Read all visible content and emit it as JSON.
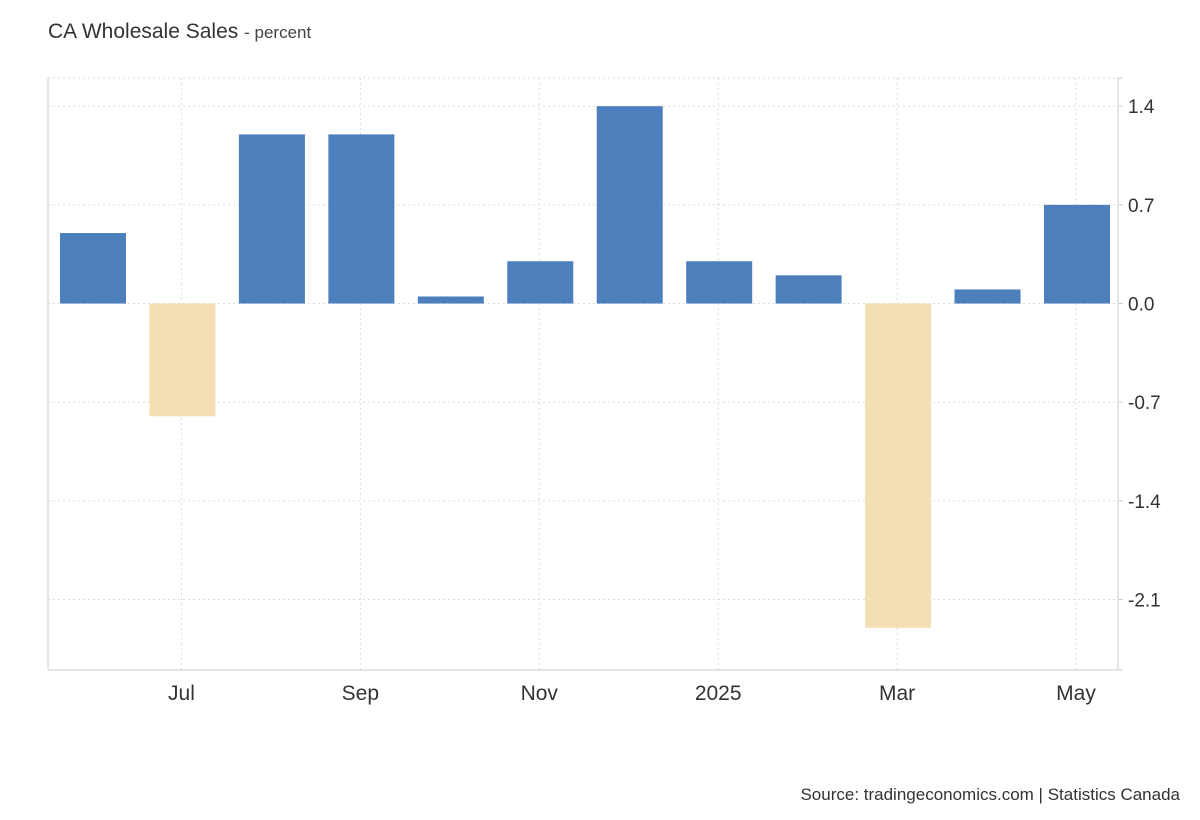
{
  "header": {
    "title": "CA Wholesale Sales",
    "subtitle": "- percent"
  },
  "source": "Source: tradingeconomics.com | Statistics Canada",
  "chart_data": {
    "type": "bar",
    "title": "CA Wholesale Sales",
    "ylabel": "percent",
    "xlabel": "",
    "categories": [
      "2024-06",
      "2024-07",
      "2024-08",
      "2024-09",
      "2024-10",
      "2024-11",
      "2024-12",
      "2025-01",
      "2025-02",
      "2025-03",
      "2025-04",
      "2025-05"
    ],
    "values": [
      0.5,
      -0.8,
      1.2,
      1.2,
      0.05,
      0.3,
      1.4,
      0.3,
      0.2,
      -2.3,
      0.1,
      0.7
    ],
    "ylim": [
      -2.6,
      1.6
    ],
    "yticks": [
      1.4,
      0.7,
      0.0,
      -0.7,
      -1.4,
      -2.1
    ],
    "ytick_labels": [
      "1.4",
      "0.7",
      "0.0",
      "-0.7",
      "-1.4",
      "-2.1"
    ],
    "xtick_labels": [
      {
        "label": "Jul",
        "at": "2024-07"
      },
      {
        "label": "Sep",
        "at": "2024-09"
      },
      {
        "label": "Nov",
        "at": "2024-11"
      },
      {
        "label": "2025",
        "at": "2025-01"
      },
      {
        "label": "Mar",
        "at": "2025-03"
      },
      {
        "label": "May",
        "at": "2025-05"
      }
    ],
    "y_axis_side": "right",
    "grid": true,
    "colors": {
      "positive": "#4c7fbc",
      "negative": "#f4deb4",
      "grid": "#dcdcdc",
      "axis": "#cccccc"
    }
  }
}
